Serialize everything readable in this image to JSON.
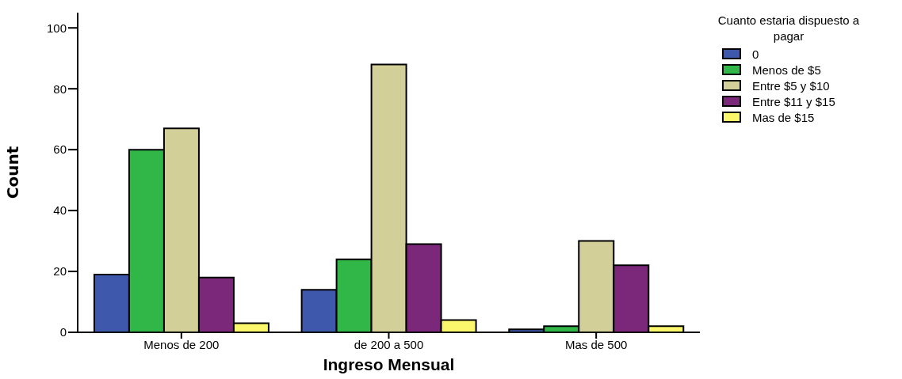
{
  "chart_data": {
    "type": "bar",
    "xlabel": "Ingreso Mensual",
    "ylabel": "Count",
    "legend_title": "Cuanto estaria dispuesto a pagar",
    "categories": [
      "Menos de 200",
      "de 200 a 500",
      "Mas de 500"
    ],
    "series": [
      {
        "name": "0",
        "color": "#3e58ac",
        "values": [
          19,
          14,
          1
        ]
      },
      {
        "name": "Menos de $5",
        "color": "#30b747",
        "values": [
          60,
          24,
          2
        ]
      },
      {
        "name": "Entre $5 y $10",
        "color": "#d3cf98",
        "values": [
          67,
          88,
          30
        ]
      },
      {
        "name": "Entre $11 y $15",
        "color": "#7b287b",
        "values": [
          18,
          29,
          22
        ]
      },
      {
        "name": "Mas de $15",
        "color": "#fbf76c",
        "values": [
          3,
          4,
          2
        ]
      }
    ],
    "ylim": [
      0,
      105
    ],
    "yticks": [
      0,
      20,
      40,
      60,
      80,
      100
    ],
    "grid": false,
    "legend": "top right"
  }
}
